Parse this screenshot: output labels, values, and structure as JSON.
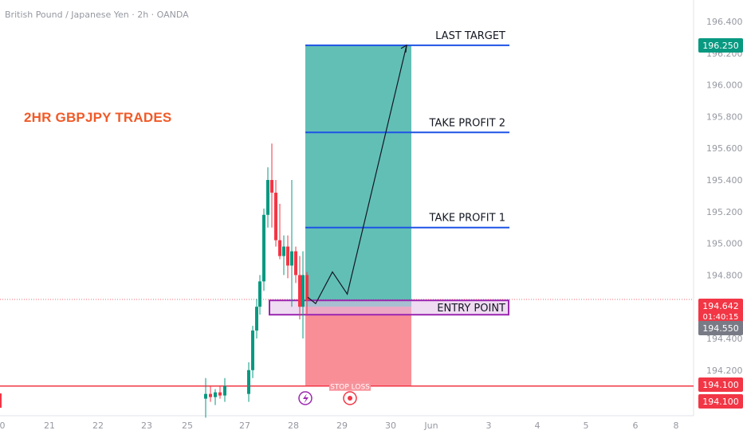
{
  "header": {
    "symbol": "British Pound / Japanese Yen · 2h · OANDA"
  },
  "headline": "2HR GBPJPY TRADES",
  "chart_data": {
    "type": "candlestick",
    "symbol": "GBPJPY",
    "timeframe": "2h",
    "broker": "OANDA",
    "y_axis": {
      "ticks": [
        "196.400",
        "196.200",
        "196.000",
        "195.800",
        "195.600",
        "195.400",
        "195.200",
        "195.000",
        "194.800",
        "194.600",
        "194.400",
        "194.200"
      ],
      "ylim": [
        194.0,
        196.5
      ]
    },
    "x_axis": {
      "ticks": [
        "0",
        "21",
        "22",
        "23",
        "25",
        "27",
        "28",
        "29",
        "30",
        "Jun",
        "3",
        "4",
        "5",
        "6",
        "8"
      ]
    },
    "price_badges": [
      {
        "value": "196.250",
        "color": "#089981"
      },
      {
        "value": "194.642",
        "color": "#f23645",
        "sub": "01:40:15"
      },
      {
        "value": "194.550",
        "color": "#787b86"
      },
      {
        "value": "194.100",
        "color": "#f23645"
      },
      {
        "value": "194.100",
        "color": "#f23645"
      }
    ],
    "levels": [
      {
        "label": "LAST TARGET",
        "price": 196.25,
        "color": "#1e53e5"
      },
      {
        "label": "TAKE PROFIT 2",
        "price": 195.7,
        "color": "#1e53e5"
      },
      {
        "label": "TAKE PROFIT 1",
        "price": 195.1,
        "color": "#1e53e5"
      },
      {
        "label": "ENTRY POINT",
        "price": 194.6,
        "color": "#9c27b0"
      },
      {
        "label": "STOP LOSS",
        "price": 194.1,
        "color": "#f23645"
      }
    ],
    "candles": [
      {
        "o": 194.02,
        "h": 194.15,
        "l": 193.9,
        "c": 194.05
      },
      {
        "o": 194.05,
        "h": 194.1,
        "l": 194.0,
        "c": 194.03
      },
      {
        "o": 194.03,
        "h": 194.08,
        "l": 193.98,
        "c": 194.06
      },
      {
        "o": 194.06,
        "h": 194.1,
        "l": 194.02,
        "c": 194.04
      },
      {
        "o": 194.04,
        "h": 194.15,
        "l": 194.0,
        "c": 194.1
      },
      {
        "o": 194.05,
        "h": 194.25,
        "l": 194.0,
        "c": 194.2
      },
      {
        "o": 194.2,
        "h": 194.48,
        "l": 194.15,
        "c": 194.45
      },
      {
        "o": 194.45,
        "h": 194.65,
        "l": 194.4,
        "c": 194.6
      },
      {
        "o": 194.6,
        "h": 194.8,
        "l": 194.55,
        "c": 194.76
      },
      {
        "o": 194.76,
        "h": 195.22,
        "l": 194.7,
        "c": 195.18
      },
      {
        "o": 195.18,
        "h": 195.48,
        "l": 195.1,
        "c": 195.4
      },
      {
        "o": 195.4,
        "h": 195.63,
        "l": 195.1,
        "c": 195.32
      },
      {
        "o": 195.32,
        "h": 195.4,
        "l": 194.98,
        "c": 195.02
      },
      {
        "o": 195.02,
        "h": 195.25,
        "l": 194.9,
        "c": 194.92
      },
      {
        "o": 194.92,
        "h": 195.05,
        "l": 194.8,
        "c": 194.98
      },
      {
        "o": 194.98,
        "h": 195.05,
        "l": 194.78,
        "c": 194.86
      },
      {
        "o": 194.86,
        "h": 195.4,
        "l": 194.6,
        "c": 194.95
      },
      {
        "o": 194.95,
        "h": 194.98,
        "l": 194.75,
        "c": 194.8
      },
      {
        "o": 194.8,
        "h": 194.92,
        "l": 194.52,
        "c": 194.6
      },
      {
        "o": 194.6,
        "h": 194.95,
        "l": 194.4,
        "c": 194.8
      },
      {
        "o": 194.8,
        "h": 194.82,
        "l": 194.55,
        "c": 194.64
      }
    ],
    "projection": [
      {
        "x": 0.0,
        "y": 194.66
      },
      {
        "x": 0.08,
        "y": 194.62
      },
      {
        "x": 0.25,
        "y": 194.82
      },
      {
        "x": 0.4,
        "y": 194.68
      },
      {
        "x": 1.0,
        "y": 196.25
      }
    ]
  },
  "icons": {
    "lightning": "lightning-icon",
    "record": "record-icon"
  }
}
